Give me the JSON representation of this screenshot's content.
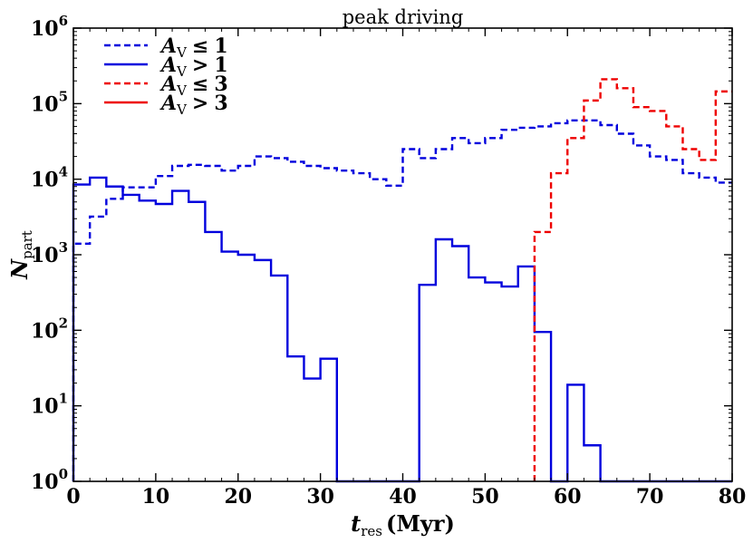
{
  "chart_data": {
    "type": "step-histogram",
    "title": "peak driving",
    "xlabel": {
      "symbol": "t",
      "subscript": "res",
      "unit": "(Myr)"
    },
    "ylabel": {
      "symbol": "N",
      "subscript": "part"
    },
    "yscale": "log",
    "xlim": [
      0,
      80
    ],
    "ylim": [
      1,
      1000000
    ],
    "x_ticks": [
      0,
      10,
      20,
      30,
      40,
      50,
      60,
      70,
      80
    ],
    "y_ticks": [
      {
        "base": "10",
        "exp": "0",
        "value": 1
      },
      {
        "base": "10",
        "exp": "1",
        "value": 10
      },
      {
        "base": "10",
        "exp": "2",
        "value": 100
      },
      {
        "base": "10",
        "exp": "3",
        "value": 1000
      },
      {
        "base": "10",
        "exp": "4",
        "value": 10000
      },
      {
        "base": "10",
        "exp": "5",
        "value": 100000
      },
      {
        "base": "10",
        "exp": "6",
        "value": 1000000
      }
    ],
    "bin_edges": [
      0,
      2,
      4,
      6,
      8,
      10,
      12,
      14,
      16,
      18,
      20,
      22,
      24,
      26,
      28,
      30,
      32,
      34,
      36,
      38,
      40,
      42,
      44,
      46,
      48,
      50,
      52,
      54,
      56,
      58,
      60,
      62,
      64,
      66,
      68,
      70,
      72,
      74,
      76,
      78,
      80
    ],
    "legend_position": "top-left",
    "series": [
      {
        "name": "A_V ≤ 1",
        "legend": {
          "symbol": "A",
          "subscript": "V",
          "relation": "≤",
          "value": "1"
        },
        "color": "#0000dd",
        "linestyle": "dashed",
        "values": [
          1400,
          3200,
          5500,
          7800,
          7800,
          11000,
          15000,
          15500,
          15000,
          13000,
          15000,
          20000,
          19000,
          17000,
          15000,
          14000,
          13000,
          12000,
          10000,
          8200,
          25000,
          19000,
          25000,
          35000,
          30000,
          35000,
          45000,
          48000,
          50000,
          55000,
          60000,
          60000,
          52000,
          40000,
          28000,
          20000,
          18000,
          12000,
          10500,
          9000
        ]
      },
      {
        "name": "A_V > 1",
        "legend": {
          "symbol": "A",
          "subscript": "V",
          "relation": ">",
          "value": "1"
        },
        "color": "#0000dd",
        "linestyle": "solid",
        "values": [
          8500,
          10500,
          8000,
          6200,
          5200,
          4700,
          7000,
          5000,
          2000,
          1100,
          1000,
          850,
          530,
          45,
          23,
          42,
          1,
          1,
          1,
          1,
          1,
          400,
          1600,
          1300,
          500,
          430,
          380,
          700,
          95,
          1,
          19,
          3,
          1,
          1,
          1,
          1,
          1,
          1,
          1,
          1
        ]
      },
      {
        "name": "A_V ≤ 3",
        "legend": {
          "symbol": "A",
          "subscript": "V",
          "relation": "≤",
          "value": "3"
        },
        "color": "#ee0000",
        "linestyle": "dashed",
        "values": [
          null,
          null,
          null,
          null,
          null,
          null,
          null,
          null,
          null,
          null,
          null,
          null,
          null,
          null,
          null,
          null,
          null,
          null,
          null,
          null,
          null,
          null,
          null,
          null,
          null,
          null,
          null,
          null,
          2000,
          12000,
          35000,
          110000,
          210000,
          160000,
          90000,
          80000,
          50000,
          25000,
          18000,
          145000
        ]
      },
      {
        "name": "A_V > 3",
        "legend": {
          "symbol": "A",
          "subscript": "V",
          "relation": ">",
          "value": "3"
        },
        "color": "#ee0000",
        "linestyle": "solid",
        "values": []
      }
    ]
  }
}
